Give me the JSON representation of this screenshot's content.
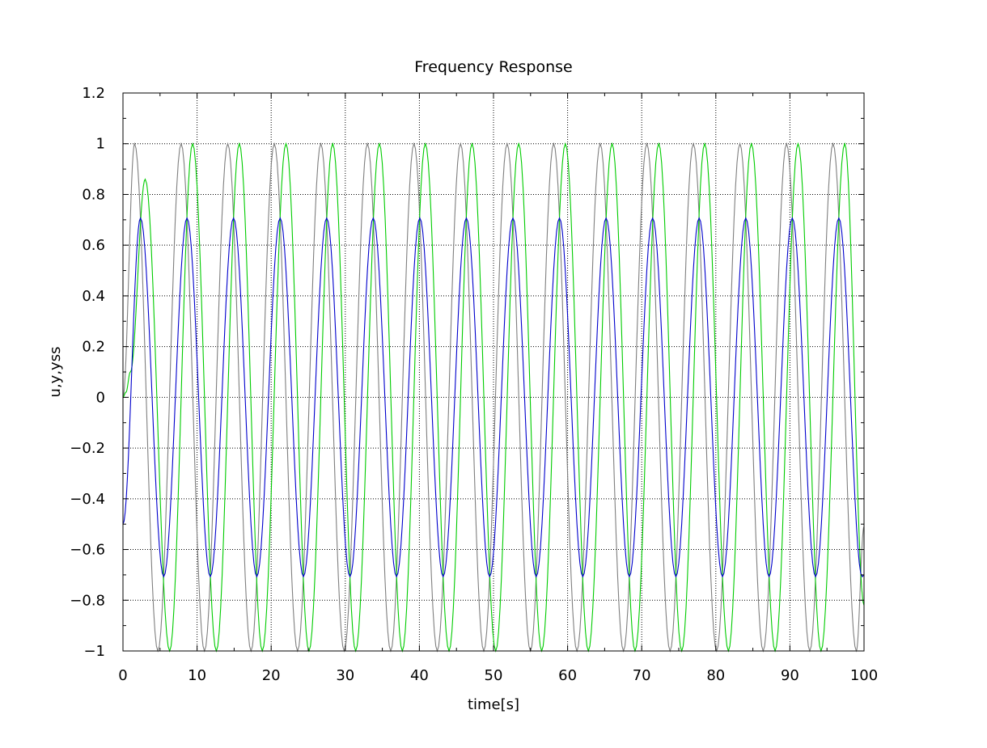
{
  "chart_data": {
    "type": "line",
    "title": "Frequency Response",
    "xlabel": "time[s]",
    "ylabel": "u,y,yss",
    "xlim": [
      0,
      100
    ],
    "ylim": [
      -1,
      1.2
    ],
    "xticks": [
      "0",
      "10",
      "20",
      "30",
      "40",
      "50",
      "60",
      "70",
      "80",
      "90",
      "100"
    ],
    "yticks": [
      "−1",
      "−0.8",
      "−0.6",
      "−0.4",
      "−0.2",
      "0",
      "0.2",
      "0.4",
      "0.6",
      "0.8",
      "1",
      "1.2"
    ],
    "xtick_values": [
      0,
      10,
      20,
      30,
      40,
      50,
      60,
      70,
      80,
      90,
      100
    ],
    "ytick_values": [
      -1,
      -0.8,
      -0.6,
      -0.4,
      -0.2,
      0,
      0.2,
      0.4,
      0.6,
      0.8,
      1,
      1.2
    ],
    "grid": true,
    "legend": "none",
    "series": [
      {
        "color": "#7f7f7f",
        "x": [
          0,
          1.57,
          4.71,
          7.85,
          11.0,
          14.14,
          17.28,
          20.42,
          23.56,
          26.7,
          29.85,
          32.99,
          36.13,
          39.27,
          42.41,
          45.55,
          48.69,
          51.84,
          54.98,
          58.12,
          61.26,
          64.4,
          67.54,
          70.69,
          73.83,
          76.97,
          80.11,
          83.25,
          86.39,
          89.54,
          92.68,
          95.82,
          98.96,
          100
        ],
        "y": [
          0,
          1,
          -1,
          1,
          -1,
          1,
          -1,
          1,
          -1,
          1,
          -1,
          1,
          -1,
          1,
          -1,
          1,
          -1,
          1,
          -1,
          1,
          -1,
          1,
          -1,
          1,
          -1,
          1,
          -1,
          1,
          -1,
          1,
          -1,
          1,
          -1,
          -0.51
        ]
      },
      {
        "color": "#00cc00",
        "x": [
          0,
          0.4,
          1.0,
          3.0,
          6.3,
          9.4,
          12.6,
          15.7,
          18.8,
          22.0,
          25.1,
          28.3,
          31.4,
          34.6,
          37.7,
          40.8,
          44.0,
          47.1,
          50.3,
          53.4,
          56.5,
          59.7,
          62.8,
          66.0,
          69.1,
          72.3,
          75.4,
          78.5,
          81.7,
          84.8,
          88.0,
          91.1,
          94.2,
          97.4,
          100
        ],
        "y": [
          0,
          0.02,
          0.1,
          0.86,
          -1,
          1,
          -1,
          1,
          -1,
          1,
          -1,
          1,
          -1,
          1,
          -1,
          1,
          -1,
          1,
          -1,
          1,
          -1,
          1,
          -1,
          1,
          -1,
          1,
          -1,
          1,
          -1,
          1,
          -1,
          1,
          -1,
          1,
          -0.82
        ]
      },
      {
        "color": "#0000cc",
        "x": [
          0,
          2.36,
          5.5,
          8.64,
          11.78,
          14.92,
          18.06,
          21.21,
          24.35,
          27.49,
          30.63,
          33.77,
          36.91,
          40.06,
          43.2,
          46.34,
          49.48,
          52.62,
          55.76,
          58.9,
          62.05,
          65.19,
          68.33,
          71.47,
          74.61,
          77.75,
          80.9,
          84.04,
          87.18,
          90.32,
          93.46,
          96.6,
          99.75,
          100
        ],
        "y": [
          -0.5,
          0.707,
          -0.707,
          0.707,
          -0.707,
          0.707,
          -0.707,
          0.707,
          -0.707,
          0.707,
          -0.707,
          0.707,
          -0.707,
          0.707,
          -0.707,
          0.707,
          -0.707,
          0.707,
          -0.707,
          0.707,
          -0.707,
          0.707,
          -0.707,
          0.707,
          -0.707,
          0.707,
          -0.707,
          0.707,
          -0.707,
          0.707,
          -0.707,
          0.707,
          -0.707,
          -0.7
        ]
      }
    ]
  }
}
